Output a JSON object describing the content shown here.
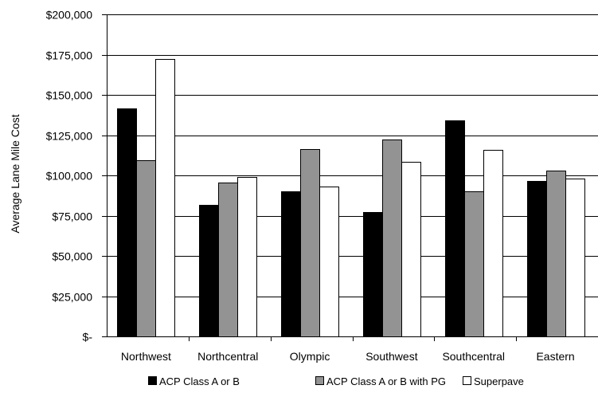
{
  "chart_data": {
    "type": "bar",
    "title": "",
    "xlabel": "",
    "ylabel": "Average Lane Mile Cost",
    "ylim": [
      0,
      200000
    ],
    "yticks": [
      0,
      25000,
      50000,
      75000,
      100000,
      125000,
      150000,
      175000,
      200000
    ],
    "ytick_labels": [
      "$-",
      "$25,000",
      "$50,000",
      "$75,000",
      "$100,000",
      "$125,000",
      "$150,000",
      "$175,000",
      "$200,000"
    ],
    "grid": true,
    "legend_position": "bottom",
    "categories": [
      "Northwest",
      "Northcentral",
      "Olympic",
      "Southwest",
      "Southcentral",
      "Eastern"
    ],
    "series": [
      {
        "name": "ACP Class A or B",
        "color": "#000000",
        "values": [
          141500,
          81500,
          90000,
          77000,
          134000,
          96500
        ]
      },
      {
        "name": "ACP Class A or B with PG",
        "color": "#939393",
        "values": [
          109500,
          95500,
          116500,
          122500,
          90000,
          103000
        ]
      },
      {
        "name": "Superpave",
        "color": "#ffffff",
        "values": [
          172500,
          99000,
          93000,
          108500,
          116000,
          98000
        ]
      }
    ]
  }
}
